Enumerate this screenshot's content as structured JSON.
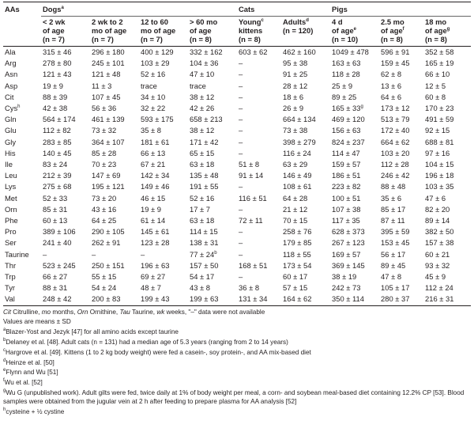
{
  "groups": [
    {
      "label": "AAs",
      "span": 1
    },
    {
      "label": "Dogs",
      "sup": "a",
      "span": 4
    },
    {
      "label": "Cats",
      "span": 2
    },
    {
      "label": "Pigs",
      "span": 3
    }
  ],
  "subheaders": [
    {
      "line1": "< 2 wk",
      "line2": "of age",
      "line3": "(n = 7)",
      "sup": ""
    },
    {
      "line1": "2 wk to 2",
      "line2": "mo of age",
      "line3": "(n = 7)",
      "sup": ""
    },
    {
      "line1": "12 to 60",
      "line2": "mo of age",
      "line3": "(n = 7)",
      "sup": ""
    },
    {
      "line1": "> 60 mo",
      "line2": "of age",
      "line3": "(n = 8)",
      "sup": ""
    },
    {
      "line1": "Young",
      "line2": "kittens",
      "line3": "(n = 8)",
      "sup": "c"
    },
    {
      "line1": "Adults",
      "line2": "(n = 120)",
      "line3": "",
      "sup": "d"
    },
    {
      "line1": "4 d",
      "line2": "of age",
      "line3": "(n = 10)",
      "sup": "e"
    },
    {
      "line1": "2.5 mo",
      "line2": "of age",
      "line3": "(n = 8)",
      "sup": "f"
    },
    {
      "line1": "18 mo",
      "line2": "of age",
      "line3": "(n = 8)",
      "sup": "g"
    }
  ],
  "rows": [
    {
      "aa": "Ala",
      "v": [
        "315 ± 46",
        "296 ± 180",
        "400 ± 129",
        "332 ± 162",
        "603 ± 62",
        "462 ± 160",
        "1049 ± 478",
        "596 ± 91",
        "352 ± 58"
      ]
    },
    {
      "aa": "Arg",
      "v": [
        "278 ± 80",
        "245 ± 101",
        "103 ± 29",
        "104 ± 36",
        "–",
        "95 ± 38",
        "163 ± 63",
        "159 ± 45",
        "165 ± 19"
      ]
    },
    {
      "aa": "Asn",
      "v": [
        "121 ± 43",
        "121 ± 48",
        "52 ± 16",
        "47 ± 10",
        "–",
        "91 ± 25",
        "118 ± 28",
        "62 ± 8",
        "66 ± 10"
      ]
    },
    {
      "aa": "Asp",
      "v": [
        "19 ± 9",
        "11 ± 3",
        "trace",
        "trace",
        "–",
        "28 ± 12",
        "25 ± 9",
        "13 ± 6",
        "12 ± 5"
      ]
    },
    {
      "aa": "Cit",
      "v": [
        "88 ± 39",
        "107 ± 45",
        "34 ± 10",
        "38 ± 12",
        "–",
        "18 ± 6",
        "89 ± 25",
        "64 ± 6",
        "60 ± 8"
      ]
    },
    {
      "aa": "Cys",
      "aa_sup": "h",
      "v": [
        "42 ± 38",
        "56 ± 36",
        "32 ± 22",
        "42 ± 26",
        "–",
        "26 ± 9",
        "165 ± 33",
        "173 ± 12",
        "170 ± 23"
      ],
      "v_sup": [
        "",
        "",
        "",
        "",
        "",
        "",
        "g",
        "",
        ""
      ]
    },
    {
      "aa": "Gln",
      "v": [
        "564 ± 174",
        "461 ± 139",
        "593 ± 175",
        "658 ± 213",
        "–",
        "664 ± 134",
        "469 ± 120",
        "513 ± 79",
        "491 ± 59"
      ]
    },
    {
      "aa": "Glu",
      "v": [
        "112 ± 82",
        "73 ± 32",
        "35 ± 8",
        "38 ± 12",
        "–",
        "73 ± 38",
        "156 ± 63",
        "172 ± 40",
        "92 ± 15"
      ]
    },
    {
      "aa": "Gly",
      "v": [
        "283 ± 85",
        "364 ± 107",
        "181 ± 61",
        "171 ± 42",
        "–",
        "398 ± 279",
        "824 ± 237",
        "664 ± 62",
        "688 ± 81"
      ]
    },
    {
      "aa": "His",
      "v": [
        "140 ± 45",
        "85 ± 28",
        "66 ± 13",
        "65 ± 15",
        "–",
        "116 ± 24",
        "114 ± 47",
        "103 ± 20",
        "97 ± 16"
      ]
    },
    {
      "aa": "Ile",
      "v": [
        "83 ± 24",
        "70 ± 23",
        "67 ± 21",
        "63 ± 18",
        "51 ± 8",
        "63 ± 29",
        "159 ± 57",
        "112 ± 28",
        "104 ± 15"
      ]
    },
    {
      "aa": "Leu",
      "v": [
        "212 ± 39",
        "147 ± 69",
        "142 ± 34",
        "135 ± 48",
        "91 ± 14",
        "146 ± 49",
        "186 ± 51",
        "246 ± 42",
        "196 ± 18"
      ]
    },
    {
      "aa": "Lys",
      "v": [
        "275 ± 68",
        "195 ± 121",
        "149 ± 46",
        "191 ± 55",
        "–",
        "108 ± 61",
        "223 ± 82",
        "88 ± 48",
        "103 ± 35"
      ]
    },
    {
      "aa": "Met",
      "v": [
        "52 ± 33",
        "73 ± 20",
        "46 ± 15",
        "52 ± 16",
        "116 ± 51",
        "64 ± 28",
        "100 ± 51",
        "35 ± 6",
        "47 ± 6"
      ]
    },
    {
      "aa": "Orn",
      "v": [
        "85 ± 31",
        "43 ± 16",
        "19 ± 9",
        "17 ± 7",
        "–",
        "21 ± 12",
        "107 ± 38",
        "85 ± 17",
        "82 ± 20"
      ]
    },
    {
      "aa": "Phe",
      "v": [
        "60 ± 13",
        "64 ± 25",
        "61 ± 14",
        "63 ± 18",
        "72 ± 11",
        "70 ± 15",
        "117 ± 35",
        "87 ± 11",
        "89 ± 14"
      ]
    },
    {
      "aa": "Pro",
      "v": [
        "389 ± 106",
        "290 ± 105",
        "145 ± 61",
        "114 ± 15",
        "–",
        "258 ± 76",
        "628 ± 373",
        "395 ± 59",
        "382 ± 50"
      ]
    },
    {
      "aa": "Ser",
      "v": [
        "241 ± 40",
        "262 ± 91",
        "123 ± 28",
        "138 ± 31",
        "–",
        "179 ± 85",
        "267 ± 123",
        "153 ± 45",
        "157 ± 38"
      ]
    },
    {
      "aa": "Taurine",
      "v": [
        "–",
        "–",
        "–",
        "77 ± 24",
        "–",
        "118 ± 55",
        "169 ± 57",
        "56 ± 17",
        "60 ± 21"
      ],
      "v_sup": [
        "",
        "",
        "",
        "b",
        "",
        "",
        "",
        "",
        ""
      ]
    },
    {
      "aa": "Thr",
      "v": [
        "523 ± 245",
        "250 ± 151",
        "196 ± 63",
        "157 ± 50",
        "168 ± 51",
        "173 ± 54",
        "369 ± 145",
        "89 ± 45",
        "93 ± 32"
      ]
    },
    {
      "aa": "Trp",
      "v": [
        "66 ± 27",
        "55 ± 15",
        "69 ± 27",
        "54 ± 17",
        "–",
        "60 ± 17",
        "38 ± 19",
        "47 ± 8",
        "45 ± 9"
      ]
    },
    {
      "aa": "Tyr",
      "v": [
        "88 ± 31",
        "54 ± 24",
        "48 ± 7",
        "43 ± 8",
        "36 ± 8",
        "57 ± 15",
        "242 ± 73",
        "105 ± 17",
        "112 ± 24"
      ]
    },
    {
      "aa": "Val",
      "v": [
        "248 ± 42",
        "200 ± 83",
        "199 ± 43",
        "199 ± 63",
        "131 ± 34",
        "164 ± 62",
        "350 ± 114",
        "280 ± 37",
        "216 ± 31"
      ]
    }
  ],
  "notes": {
    "abbrev": [
      {
        "term": "Cit",
        "text": " Citrulline, "
      },
      {
        "term": "mo",
        "text": " months, "
      },
      {
        "term": "Orn",
        "text": " Ornithine, "
      },
      {
        "term": "Tau",
        "text": " Taurine, "
      },
      {
        "term": "wk",
        "text": " weeks, \"–\" data were not available"
      }
    ],
    "values_line": "Values are means ± SD",
    "footnotes": [
      {
        "mark": "a",
        "text": "Blazer-Yost and Jezyk [47] for all amino acids except taurine"
      },
      {
        "mark": "b",
        "text": "Delaney et al. [48]. Adult cats (n = 131) had a median age of 5.3 years (ranging from 2 to 14 years)"
      },
      {
        "mark": "c",
        "text": "Hargrove et al. [49]. Kittens (1 to 2 kg body weight) were fed a casein-, soy protein-, and AA mix-based diet"
      },
      {
        "mark": "d",
        "text": "Heinze et al. [50]"
      },
      {
        "mark": "e",
        "text": "Flynn and Wu [51]"
      },
      {
        "mark": "f",
        "text": "Wu et al. [52]"
      },
      {
        "mark": "g",
        "text": "Wu G (unpublished work). Adult gilts were fed, twice daily at 1% of body weight per meal, a corn- and soybean meal-based diet containing 12.2% CP [53]. Blood samples were obtained from the jugular vein at 2 h after feeding to prepare plasma for AA analysis [52]"
      },
      {
        "mark": "h",
        "text": "cysteine + ½ cystine"
      }
    ]
  }
}
